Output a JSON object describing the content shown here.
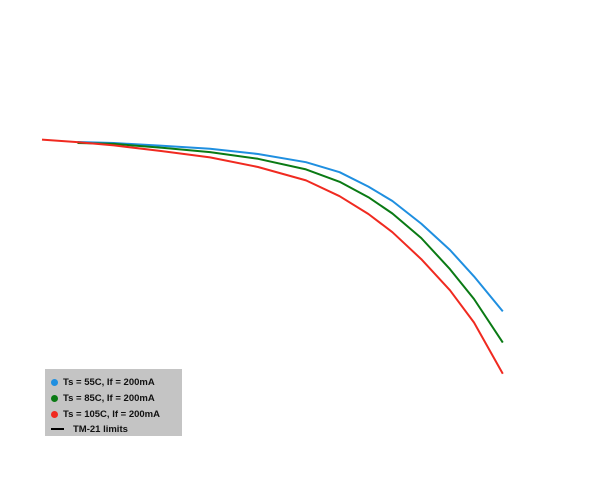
{
  "chart_data": {
    "type": "line",
    "xlim": [
      0,
      1
    ],
    "ylim": [
      0,
      1
    ],
    "x_scale": "linear",
    "grid": false,
    "axes_visible": false,
    "legend_position": "bottom-left",
    "series": [
      {
        "name": "Ts = 55C, If = 200mA",
        "color": "#1f8fe0",
        "x": [
          0.074,
          0.15,
          0.25,
          0.35,
          0.45,
          0.55,
          0.62,
          0.68,
          0.73,
          0.79,
          0.85,
          0.9,
          0.96
        ],
        "y": [
          0.725,
          0.723,
          0.717,
          0.711,
          0.7,
          0.683,
          0.662,
          0.632,
          0.602,
          0.555,
          0.5,
          0.445,
          0.372
        ]
      },
      {
        "name": "Ts = 85C, If = 200mA",
        "color": "#0a7a14",
        "x": [
          0.074,
          0.15,
          0.25,
          0.35,
          0.45,
          0.55,
          0.62,
          0.68,
          0.73,
          0.79,
          0.85,
          0.9,
          0.96
        ],
        "y": [
          0.723,
          0.721,
          0.713,
          0.704,
          0.69,
          0.668,
          0.642,
          0.61,
          0.576,
          0.525,
          0.46,
          0.398,
          0.307
        ]
      },
      {
        "name": "Ts = 105C, If = 200mA",
        "color": "#f02a20",
        "x": [
          0.0,
          0.07,
          0.15,
          0.25,
          0.35,
          0.45,
          0.55,
          0.62,
          0.68,
          0.73,
          0.79,
          0.85,
          0.9,
          0.96
        ],
        "y": [
          0.73,
          0.725,
          0.718,
          0.706,
          0.693,
          0.673,
          0.645,
          0.612,
          0.575,
          0.537,
          0.481,
          0.416,
          0.349,
          0.242
        ]
      }
    ],
    "legend": [
      {
        "label": "Ts = 55C, If = 200mA",
        "marker": "dot",
        "color": "#1f8fe0"
      },
      {
        "label": "Ts = 85C, If = 200mA",
        "marker": "dot",
        "color": "#0a7a14"
      },
      {
        "label": "Ts = 105C, If = 200mA",
        "marker": "dot",
        "color": "#f02a20"
      },
      {
        "label": "TM-21 limits",
        "marker": "line",
        "color": "#000000"
      }
    ]
  },
  "colors": {
    "background": "#ffffff",
    "legend_background": "#c4c4c4"
  }
}
